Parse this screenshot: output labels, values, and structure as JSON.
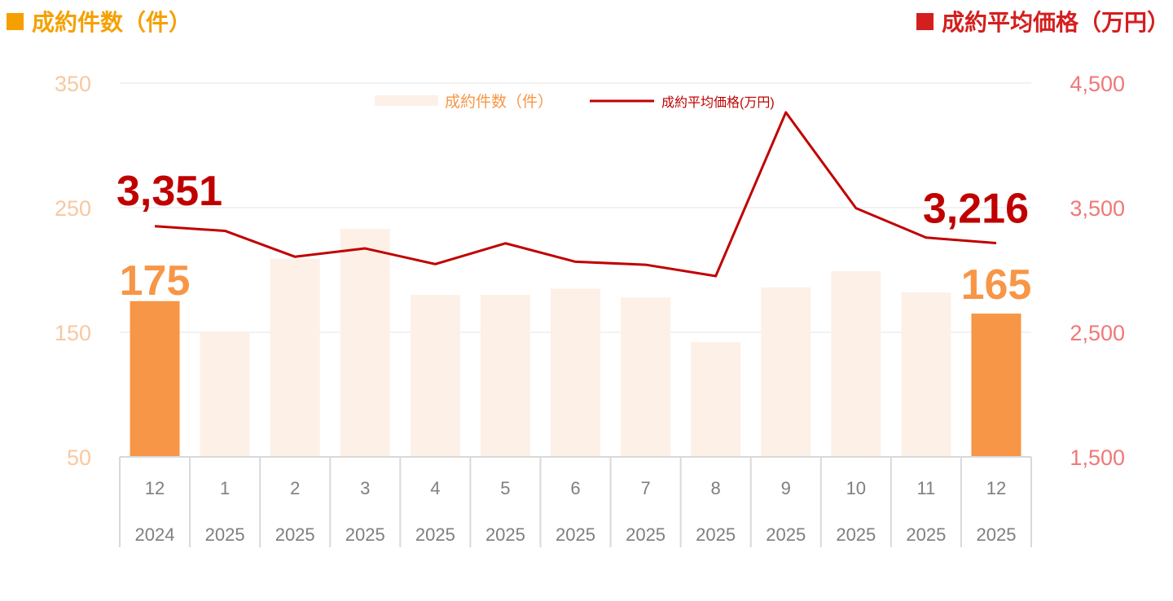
{
  "header": {
    "left_title": "成約件数（件）",
    "right_title": "成約平均価格（万円）"
  },
  "colors": {
    "count_accent": "#f5a000",
    "price_accent": "#d41f1f",
    "bar_highlight": "#f79646",
    "bar_faded": "#fdf0e6",
    "line": "#c00000",
    "left_axis_text": "#f8c8a0",
    "right_axis_text": "#f07878",
    "axis_text": "#7f7f7f"
  },
  "legend": {
    "bars_label": "成約件数（件）",
    "line_label": "成約平均価格(万円)"
  },
  "chart_data": {
    "type": "bar",
    "categories": [
      {
        "month": "12",
        "year": "2024"
      },
      {
        "month": "1",
        "year": "2025"
      },
      {
        "month": "2",
        "year": "2025"
      },
      {
        "month": "3",
        "year": "2025"
      },
      {
        "month": "4",
        "year": "2025"
      },
      {
        "month": "5",
        "year": "2025"
      },
      {
        "month": "6",
        "year": "2025"
      },
      {
        "month": "7",
        "year": "2025"
      },
      {
        "month": "8",
        "year": "2025"
      },
      {
        "month": "9",
        "year": "2025"
      },
      {
        "month": "10",
        "year": "2025"
      },
      {
        "month": "11",
        "year": "2025"
      },
      {
        "month": "12",
        "year": "2025"
      }
    ],
    "series": [
      {
        "name": "成約件数（件）",
        "type": "bar",
        "axis": "left",
        "values": [
          175,
          150,
          209,
          233,
          180,
          180,
          185,
          178,
          142,
          186,
          199,
          182,
          165
        ],
        "highlight_indices": [
          0,
          12
        ]
      },
      {
        "name": "成約平均価格(万円)",
        "type": "line",
        "axis": "right",
        "values": [
          3351,
          3314,
          3106,
          3173,
          3047,
          3214,
          3066,
          3042,
          2951,
          4265,
          3496,
          3260,
          3216
        ]
      }
    ],
    "left_axis": {
      "ylim": [
        50,
        350
      ],
      "ticks": [
        "350",
        "250",
        "150",
        "50"
      ],
      "tick_values": [
        350,
        250,
        150,
        50
      ]
    },
    "right_axis": {
      "ylim": [
        1500,
        4500
      ],
      "ticks": [
        "4,500",
        "3,500",
        "2,500",
        "1,500"
      ],
      "tick_values": [
        4500,
        3500,
        2500,
        1500
      ]
    },
    "annotations": {
      "count_first": "175",
      "count_last": "165",
      "price_first": "3,351",
      "price_last": "3,216"
    },
    "grid": true,
    "legend_position": "top-center"
  }
}
